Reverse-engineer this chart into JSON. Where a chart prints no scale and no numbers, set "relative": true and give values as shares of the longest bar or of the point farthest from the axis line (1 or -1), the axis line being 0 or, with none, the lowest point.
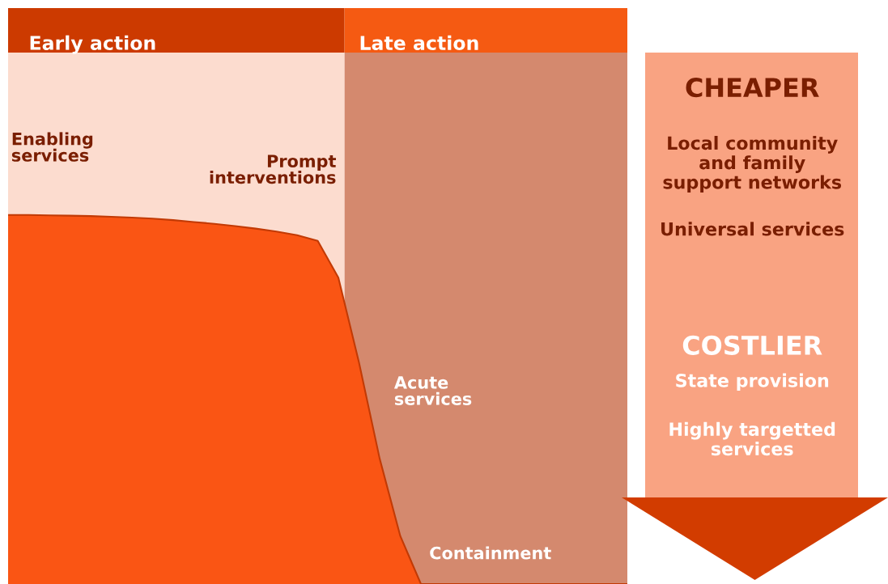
{
  "chart_data": [
    {
      "type": "area",
      "relative": true,
      "color": "#fa5514",
      "categories": [
        null,
        null,
        null,
        null,
        null,
        null,
        null,
        null,
        null,
        null,
        null,
        null,
        null,
        null,
        null,
        null,
        null,
        null,
        null,
        null,
        null,
        null,
        null,
        null,
        null,
        null,
        null,
        null,
        null,
        null,
        null
      ],
      "values": [
        1.0,
        1.0,
        0.999,
        0.998,
        0.997,
        0.995,
        0.993,
        0.99,
        0.986,
        0.981,
        0.976,
        0.97,
        0.963,
        0.955,
        0.945,
        0.93,
        0.83,
        0.6,
        0.34,
        0.13,
        0,
        0,
        0,
        0,
        0,
        0,
        0,
        0,
        0,
        0,
        0
      ],
      "annotations": [
        "Early action",
        "Late action",
        "Enabling\nservices",
        "Prompt\ninterventions",
        "Acute\nservices",
        "Containment"
      ]
    },
    {
      "type": "other",
      "annotations": [
        "CHEAPER",
        "Local community\nand family\nsupport networks",
        "Universal services",
        "COSTLIER",
        "State provision",
        "Highly targetted\nservices"
      ]
    }
  ]
}
